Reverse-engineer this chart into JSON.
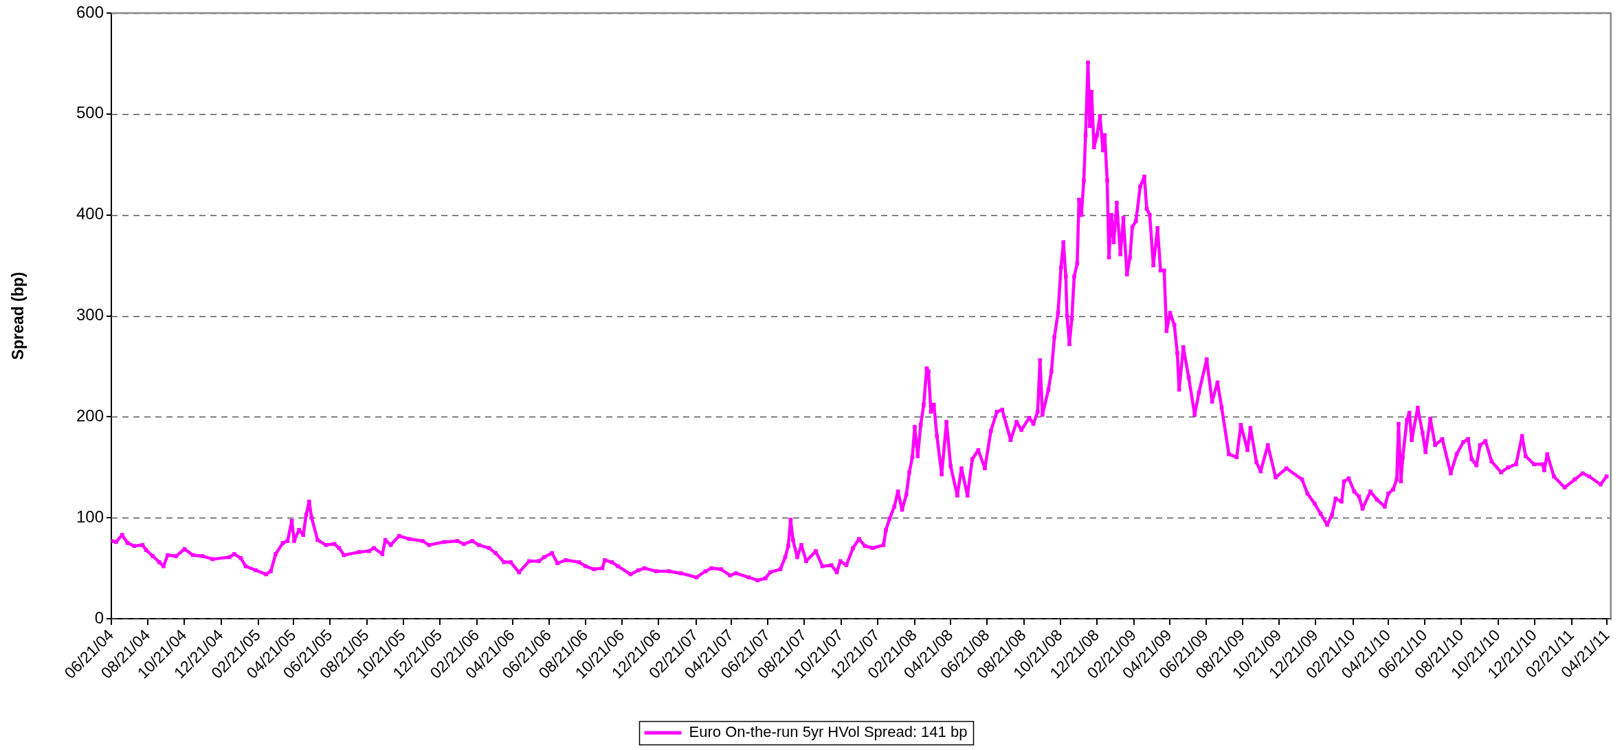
{
  "chart_data": {
    "type": "line",
    "ylabel": "Spread (bp)",
    "x": [
      "2004-06-21",
      "2004-06-29",
      "2004-07-09",
      "2004-07-18",
      "2004-07-29",
      "2004-08-12",
      "2004-08-18",
      "2004-08-29",
      "2004-09-09",
      "2004-09-16",
      "2004-09-23",
      "2004-10-07",
      "2004-10-21",
      "2004-11-04",
      "2004-11-20",
      "2004-12-07",
      "2005-01-04",
      "2005-01-12",
      "2005-01-23",
      "2005-01-31",
      "2005-02-17",
      "2005-03-06",
      "2005-03-14",
      "2005-03-22",
      "2005-04-03",
      "2005-04-11",
      "2005-04-18",
      "2005-04-22",
      "2005-04-30",
      "2005-05-07",
      "2005-05-12",
      "2005-05-17",
      "2005-05-21",
      "2005-05-31",
      "2005-06-14",
      "2005-06-28",
      "2005-07-06",
      "2005-07-14",
      "2005-08-08",
      "2005-08-25",
      "2005-09-02",
      "2005-09-16",
      "2005-09-21",
      "2005-09-30",
      "2005-10-14",
      "2005-10-31",
      "2005-11-22",
      "2005-12-03",
      "2005-12-28",
      "2006-01-19",
      "2006-01-30",
      "2006-02-13",
      "2006-02-24",
      "2006-03-13",
      "2006-03-24",
      "2006-04-07",
      "2006-04-18",
      "2006-05-02",
      "2006-05-19",
      "2006-06-04",
      "2006-06-13",
      "2006-06-26",
      "2006-07-05",
      "2006-07-19",
      "2006-08-10",
      "2006-08-21",
      "2006-09-04",
      "2006-09-18",
      "2006-09-22",
      "2006-10-04",
      "2006-10-14",
      "2006-11-04",
      "2006-11-17",
      "2006-11-27",
      "2006-12-17",
      "2007-01-07",
      "2007-01-27",
      "2007-02-22",
      "2007-03-09",
      "2007-03-19",
      "2007-04-04",
      "2007-04-19",
      "2007-04-29",
      "2007-05-20",
      "2007-06-04",
      "2007-06-17",
      "2007-06-25",
      "2007-07-12",
      "2007-07-20",
      "2007-07-25",
      "2007-07-29",
      "2007-08-02",
      "2007-08-09",
      "2007-08-16",
      "2007-08-24",
      "2007-09-09",
      "2007-09-20",
      "2007-10-05",
      "2007-10-14",
      "2007-10-20",
      "2007-10-30",
      "2007-11-10",
      "2007-11-20",
      "2007-11-30",
      "2007-12-13",
      "2007-12-31",
      "2008-01-04",
      "2008-01-10",
      "2008-01-18",
      "2008-01-24",
      "2008-01-31",
      "2008-02-07",
      "2008-02-12",
      "2008-02-17",
      "2008-02-21",
      "2008-02-26",
      "2008-03-02",
      "2008-03-07",
      "2008-03-12",
      "2008-03-15",
      "2008-03-19",
      "2008-03-24",
      "2008-03-29",
      "2008-04-06",
      "2008-04-14",
      "2008-04-21",
      "2008-05-02",
      "2008-05-09",
      "2008-05-19",
      "2008-05-27",
      "2008-06-06",
      "2008-06-17",
      "2008-06-27",
      "2008-07-07",
      "2008-07-16",
      "2008-07-30",
      "2008-08-09",
      "2008-08-17",
      "2008-08-30",
      "2008-09-06",
      "2008-09-13",
      "2008-09-17",
      "2008-09-21",
      "2008-10-01",
      "2008-10-06",
      "2008-10-11",
      "2008-10-17",
      "2008-10-22",
      "2008-10-26",
      "2008-10-30",
      "2008-11-01",
      "2008-11-05",
      "2008-11-09",
      "2008-11-13",
      "2008-11-18",
      "2008-11-21",
      "2008-11-25",
      "2008-11-29",
      "2008-12-02",
      "2008-12-06",
      "2008-12-09",
      "2008-12-12",
      "2008-12-16",
      "2008-12-21",
      "2008-12-26",
      "2008-12-31",
      "2009-01-03",
      "2009-01-07",
      "2009-01-10",
      "2009-01-14",
      "2009-01-18",
      "2009-01-23",
      "2009-01-29",
      "2009-02-03",
      "2009-02-09",
      "2009-02-14",
      "2009-02-18",
      "2009-02-24",
      "2009-03-03",
      "2009-03-10",
      "2009-03-14",
      "2009-03-19",
      "2009-03-25",
      "2009-04-01",
      "2009-04-06",
      "2009-04-12",
      "2009-04-16",
      "2009-04-22",
      "2009-04-29",
      "2009-05-04",
      "2009-05-07",
      "2009-05-14",
      "2009-05-23",
      "2009-06-02",
      "2009-06-09",
      "2009-06-22",
      "2009-07-01",
      "2009-07-10",
      "2009-07-17",
      "2009-07-29",
      "2009-08-11",
      "2009-08-18",
      "2009-08-29",
      "2009-09-03",
      "2009-09-13",
      "2009-09-20",
      "2009-10-02",
      "2009-10-15",
      "2009-11-02",
      "2009-11-28",
      "2009-12-07",
      "2009-12-19",
      "2009-12-29",
      "2010-01-09",
      "2010-01-17",
      "2010-01-23",
      "2010-02-02",
      "2010-02-06",
      "2010-02-14",
      "2010-02-23",
      "2010-03-03",
      "2010-03-09",
      "2010-03-22",
      "2010-04-02",
      "2010-04-15",
      "2010-04-21",
      "2010-04-29",
      "2010-05-05",
      "2010-05-08",
      "2010-05-12",
      "2010-05-15",
      "2010-05-22",
      "2010-05-26",
      "2010-05-30",
      "2010-06-09",
      "2010-06-17",
      "2010-06-22",
      "2010-06-30",
      "2010-07-08",
      "2010-07-20",
      "2010-08-03",
      "2010-08-13",
      "2010-08-24",
      "2010-09-01",
      "2010-09-07",
      "2010-09-15",
      "2010-09-21",
      "2010-09-30",
      "2010-10-10",
      "2010-10-26",
      "2010-11-07",
      "2010-11-20",
      "2010-11-30",
      "2010-12-06",
      "2010-12-20",
      "2011-01-03",
      "2011-01-06",
      "2011-01-11",
      "2011-01-22",
      "2011-02-09",
      "2011-02-26",
      "2011-03-11",
      "2011-03-22",
      "2011-04-10",
      "2011-04-20"
    ],
    "series": [
      {
        "name": "Euro On-the-run 5yr HVol Spread: 141 bp",
        "color": "#ff00ff",
        "values": [
          77,
          76,
          83,
          75,
          72,
          73,
          68,
          62,
          56,
          52,
          63,
          62,
          69,
          63,
          62,
          59,
          61,
          64,
          60,
          52,
          48,
          44,
          47,
          64,
          75,
          77,
          97,
          77,
          88,
          83,
          103,
          116,
          100,
          78,
          73,
          74,
          70,
          63,
          66,
          67,
          70,
          64,
          78,
          73,
          82,
          79,
          77,
          73,
          76,
          77,
          74,
          77,
          73,
          70,
          65,
          56,
          56,
          46,
          57,
          57,
          61,
          65,
          55,
          58,
          56,
          52,
          49,
          50,
          58,
          56,
          52,
          44,
          48,
          50,
          47,
          47,
          45,
          41,
          47,
          50,
          49,
          43,
          45,
          41,
          38,
          40,
          46,
          49,
          61,
          72,
          98,
          78,
          61,
          73,
          57,
          67,
          52,
          53,
          46,
          57,
          53,
          70,
          79,
          72,
          70,
          73,
          88,
          99,
          111,
          126,
          108,
          123,
          145,
          160,
          190,
          161,
          192,
          212,
          248,
          245,
          205,
          212,
          181,
          143,
          195,
          151,
          122,
          149,
          122,
          158,
          167,
          149,
          186,
          205,
          207,
          177,
          195,
          187,
          199,
          193,
          205,
          256,
          202,
          227,
          245,
          279,
          303,
          348,
          373,
          339,
          300,
          272,
          297,
          339,
          352,
          415,
          400,
          434,
          479,
          551,
          488,
          522,
          467,
          479,
          498,
          464,
          479,
          434,
          358,
          400,
          373,
          412,
          361,
          397,
          341,
          358,
          388,
          394,
          428,
          438,
          406,
          400,
          350,
          387,
          345,
          345,
          285,
          303,
          291,
          263,
          227,
          269,
          239,
          202,
          224,
          257,
          215,
          234,
          209,
          163,
          160,
          192,
          167,
          189,
          155,
          146,
          172,
          140,
          149,
          138,
          124,
          114,
          104,
          93,
          103,
          119,
          116,
          136,
          139,
          126,
          121,
          109,
          126,
          118,
          111,
          124,
          128,
          138,
          193,
          136,
          160,
          197,
          204,
          177,
          209,
          184,
          165,
          198,
          172,
          178,
          144,
          163,
          175,
          178,
          158,
          152,
          172,
          176,
          156,
          145,
          150,
          153,
          181,
          161,
          153,
          153,
          147,
          163,
          141,
          130,
          138,
          144,
          141,
          133,
          141
        ]
      }
    ],
    "xlim": [
      "2004-06-21",
      "2011-04-27"
    ],
    "xticks": [
      {
        "value": "2004-06-21",
        "label": "06/21/04"
      },
      {
        "value": "2004-08-21",
        "label": "08/21/04"
      },
      {
        "value": "2004-10-21",
        "label": "10/21/04"
      },
      {
        "value": "2004-12-21",
        "label": "12/21/04"
      },
      {
        "value": "2005-02-21",
        "label": "02/21/05"
      },
      {
        "value": "2005-04-21",
        "label": "04/21/05"
      },
      {
        "value": "2005-06-21",
        "label": "06/21/05"
      },
      {
        "value": "2005-08-21",
        "label": "08/21/05"
      },
      {
        "value": "2005-10-21",
        "label": "10/21/05"
      },
      {
        "value": "2005-12-21",
        "label": "12/21/05"
      },
      {
        "value": "2006-02-21",
        "label": "02/21/06"
      },
      {
        "value": "2006-04-21",
        "label": "04/21/06"
      },
      {
        "value": "2006-06-21",
        "label": "06/21/06"
      },
      {
        "value": "2006-08-21",
        "label": "08/21/06"
      },
      {
        "value": "2006-10-21",
        "label": "10/21/06"
      },
      {
        "value": "2006-12-21",
        "label": "12/21/06"
      },
      {
        "value": "2007-02-21",
        "label": "02/21/07"
      },
      {
        "value": "2007-04-21",
        "label": "04/21/07"
      },
      {
        "value": "2007-06-21",
        "label": "06/21/07"
      },
      {
        "value": "2007-08-21",
        "label": "08/21/07"
      },
      {
        "value": "2007-10-21",
        "label": "10/21/07"
      },
      {
        "value": "2007-12-21",
        "label": "12/21/07"
      },
      {
        "value": "2008-02-21",
        "label": "02/21/08"
      },
      {
        "value": "2008-04-21",
        "label": "04/21/08"
      },
      {
        "value": "2008-06-21",
        "label": "06/21/08"
      },
      {
        "value": "2008-08-21",
        "label": "08/21/08"
      },
      {
        "value": "2008-10-21",
        "label": "10/21/08"
      },
      {
        "value": "2008-12-21",
        "label": "12/21/08"
      },
      {
        "value": "2009-02-21",
        "label": "02/21/09"
      },
      {
        "value": "2009-04-21",
        "label": "04/21/09"
      },
      {
        "value": "2009-06-21",
        "label": "06/21/09"
      },
      {
        "value": "2009-08-21",
        "label": "08/21/09"
      },
      {
        "value": "2009-10-21",
        "label": "10/21/09"
      },
      {
        "value": "2009-12-21",
        "label": "12/21/09"
      },
      {
        "value": "2010-02-21",
        "label": "02/21/10"
      },
      {
        "value": "2010-04-21",
        "label": "04/21/10"
      },
      {
        "value": "2010-06-21",
        "label": "06/21/10"
      },
      {
        "value": "2010-08-21",
        "label": "08/21/10"
      },
      {
        "value": "2010-10-21",
        "label": "10/21/10"
      },
      {
        "value": "2010-12-21",
        "label": "12/21/10"
      },
      {
        "value": "2011-02-21",
        "label": "02/21/11"
      },
      {
        "value": "2011-04-21",
        "label": "04/21/11"
      }
    ],
    "ylim": [
      0,
      600
    ],
    "yticks": [
      0,
      100,
      200,
      300,
      400,
      500,
      600
    ],
    "grid": "y",
    "legend": "bottom",
    "marker": "square",
    "line_style": "solid"
  }
}
